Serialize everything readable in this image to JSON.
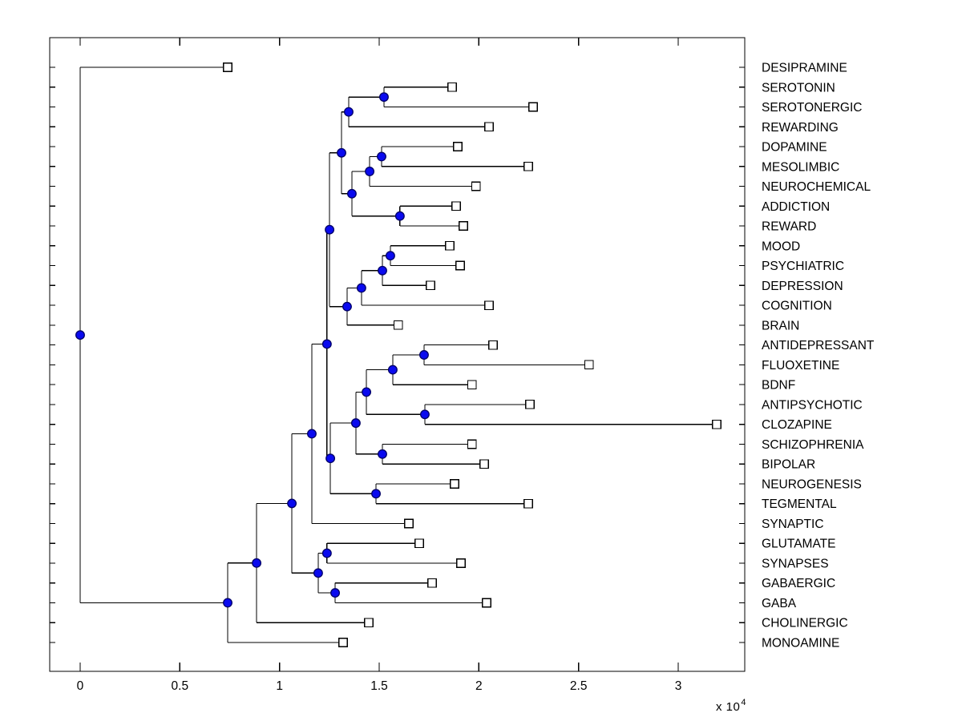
{
  "figure": {
    "background": "#ffffff"
  },
  "chart_data": {
    "type": "dendrogram",
    "orientation": "horizontal-leaves-right",
    "title": "",
    "xlabel": "",
    "ylabel": "",
    "grid": false,
    "x_axis": {
      "xlim": [
        -0.1528,
        3.3337
      ],
      "tick_values": [
        0,
        0.5,
        1,
        1.5,
        2,
        2.5,
        3
      ],
      "tick_labels": [
        "0",
        "0.5",
        "1",
        "1.5",
        "2",
        "2.5",
        "3"
      ],
      "multiplier_base": "x 10",
      "multiplier_exponent": "4",
      "units_scale": 10000
    },
    "leaves": [
      {
        "label": "DESIPRAMINE",
        "x": 0.74
      },
      {
        "label": "SEROTONIN",
        "x": 1.866
      },
      {
        "label": "SEROTONERGIC",
        "x": 2.272
      },
      {
        "label": "REWARDING",
        "x": 2.051
      },
      {
        "label": "DOPAMINE",
        "x": 1.894
      },
      {
        "label": "MESOLIMBIC",
        "x": 2.248
      },
      {
        "label": "NEUROCHEMICAL",
        "x": 1.986
      },
      {
        "label": "ADDICTION",
        "x": 1.886
      },
      {
        "label": "REWARD",
        "x": 1.922
      },
      {
        "label": "MOOD",
        "x": 1.854
      },
      {
        "label": "PSYCHIATRIC",
        "x": 1.906
      },
      {
        "label": "DEPRESSION",
        "x": 1.757
      },
      {
        "label": "COGNITION",
        "x": 2.051
      },
      {
        "label": "BRAIN",
        "x": 1.596
      },
      {
        "label": "ANTIDEPRESSANT",
        "x": 2.071
      },
      {
        "label": "FLUOXETINE",
        "x": 2.553
      },
      {
        "label": "BDNF",
        "x": 1.966
      },
      {
        "label": "ANTIPSYCHOTIC",
        "x": 2.256
      },
      {
        "label": "CLOZAPINE",
        "x": 3.193
      },
      {
        "label": "SCHIZOPHRENIA",
        "x": 1.966
      },
      {
        "label": "BIPOLAR",
        "x": 2.027
      },
      {
        "label": "NEUROGENESIS",
        "x": 1.878
      },
      {
        "label": "TEGMENTAL",
        "x": 2.248
      },
      {
        "label": "SYNAPTIC",
        "x": 1.649
      },
      {
        "label": "GLUTAMATE",
        "x": 1.701
      },
      {
        "label": "SYNAPSES",
        "x": 1.91
      },
      {
        "label": "GABAERGIC",
        "x": 1.765
      },
      {
        "label": "GABA",
        "x": 2.039
      },
      {
        "label": "CHOLINERGIC",
        "x": 1.448
      },
      {
        "label": "MONOAMINE",
        "x": 1.319
      }
    ],
    "internal_nodes": [
      {
        "id": "n-serotonin-serotonergic",
        "children": [
          "SEROTONIN",
          "SEROTONERGIC"
        ],
        "x": 1.524
      },
      {
        "id": "n-serotonin-rewarding",
        "children": [
          "n-serotonin-serotonergic",
          "REWARDING"
        ],
        "x": 1.347
      },
      {
        "id": "n-dopamine-mesolimbic",
        "children": [
          "DOPAMINE",
          "MESOLIMBIC"
        ],
        "x": 1.512
      },
      {
        "id": "n-dopa-neurochemical",
        "children": [
          "n-dopamine-mesolimbic",
          "NEUROCHEMICAL"
        ],
        "x": 1.452
      },
      {
        "id": "n-addiction-reward",
        "children": [
          "ADDICTION",
          "REWARD"
        ],
        "x": 1.604
      },
      {
        "id": "n-dopa-addiction",
        "children": [
          "n-dopa-neurochemical",
          "n-addiction-reward"
        ],
        "x": 1.363
      },
      {
        "id": "n-serotonin-dopamine",
        "children": [
          "n-serotonin-rewarding",
          "n-dopa-addiction"
        ],
        "x": 1.311
      },
      {
        "id": "n-mood-psychiatric",
        "children": [
          "MOOD",
          "PSYCHIATRIC"
        ],
        "x": 1.556
      },
      {
        "id": "n-mood-depression",
        "children": [
          "n-mood-psychiatric",
          "DEPRESSION"
        ],
        "x": 1.516
      },
      {
        "id": "n-mood-cognition",
        "children": [
          "n-mood-depression",
          "COGNITION"
        ],
        "x": 1.411
      },
      {
        "id": "n-mood-brain",
        "children": [
          "n-mood-cognition",
          "BRAIN"
        ],
        "x": 1.339
      },
      {
        "id": "n-upper",
        "children": [
          "n-serotonin-dopamine",
          "n-mood-brain"
        ],
        "x": 1.251
      },
      {
        "id": "n-antidepressant-fluoxetine",
        "children": [
          "ANTIDEPRESSANT",
          "FLUOXETINE"
        ],
        "x": 1.725
      },
      {
        "id": "n-antidep-bdnf",
        "children": [
          "n-antidepressant-fluoxetine",
          "BDNF"
        ],
        "x": 1.568
      },
      {
        "id": "n-antipsychotic-clozapine",
        "children": [
          "ANTIPSYCHOTIC",
          "CLOZAPINE"
        ],
        "x": 1.729
      },
      {
        "id": "n-antidep-antipsych",
        "children": [
          "n-antidep-bdnf",
          "n-antipsychotic-clozapine"
        ],
        "x": 1.436
      },
      {
        "id": "n-schizophrenia-bipolar",
        "children": [
          "SCHIZOPHRENIA",
          "BIPOLAR"
        ],
        "x": 1.516
      },
      {
        "id": "n-drug-disorder",
        "children": [
          "n-antidep-antipsych",
          "n-schizophrenia-bipolar"
        ],
        "x": 1.383
      },
      {
        "id": "n-neurogenesis-tegmental",
        "children": [
          "NEUROGENESIS",
          "TEGMENTAL"
        ],
        "x": 1.484
      },
      {
        "id": "n-mid",
        "children": [
          "n-drug-disorder",
          "n-neurogenesis-tegmental"
        ],
        "x": 1.255
      },
      {
        "id": "n-upper-mid",
        "children": [
          "n-upper",
          "n-mid"
        ],
        "x": 1.238
      },
      {
        "id": "n-synaptic-join",
        "children": [
          "n-upper-mid",
          "SYNAPTIC"
        ],
        "x": 1.162
      },
      {
        "id": "n-glutamate-synapses",
        "children": [
          "GLUTAMATE",
          "SYNAPSES"
        ],
        "x": 1.238
      },
      {
        "id": "n-gabaergic-gaba",
        "children": [
          "GABAERGIC",
          "GABA"
        ],
        "x": 1.279
      },
      {
        "id": "n-transmitters",
        "children": [
          "n-glutamate-synapses",
          "n-gabaergic-gaba"
        ],
        "x": 1.194
      },
      {
        "id": "n-big-join",
        "children": [
          "n-synaptic-join",
          "n-transmitters"
        ],
        "x": 1.062
      },
      {
        "id": "n-cholinergic-join",
        "children": [
          "n-big-join",
          "CHOLINERGIC"
        ],
        "x": 0.885
      },
      {
        "id": "n-monoamine-join",
        "children": [
          "n-cholinergic-join",
          "MONOAMINE"
        ],
        "x": 0.74
      },
      {
        "id": "root",
        "children": [
          "DESIPRAMINE",
          "n-monoamine-join"
        ],
        "x": 0.0
      }
    ],
    "styles": {
      "line_color": "#000000",
      "frame_color": "#000000",
      "internal_node_fill": "#0A0AEF",
      "internal_node_stroke": "#000066",
      "leaf_marker_fill": "#FFFFFF",
      "leaf_marker_stroke": "#000000",
      "text_color": "#000000"
    }
  }
}
